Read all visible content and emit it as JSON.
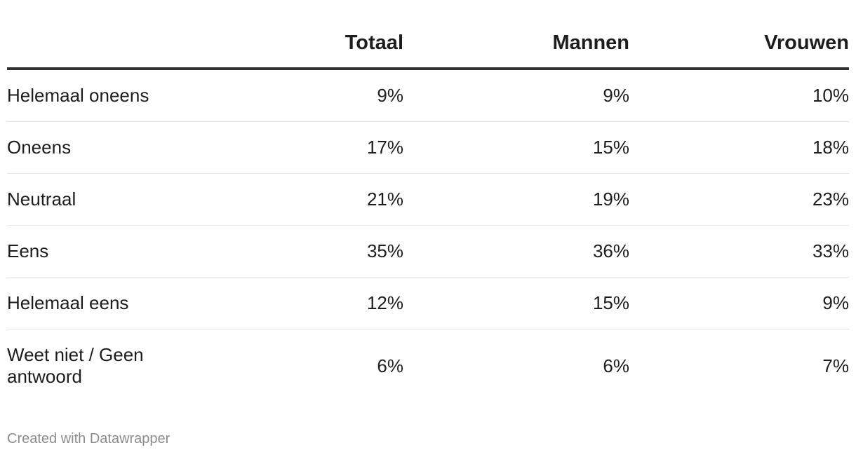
{
  "chart_data": {
    "type": "table",
    "columns": [
      "",
      "Totaal",
      "Mannen",
      "Vrouwen"
    ],
    "rows": [
      {
        "label": "Helemaal oneens",
        "values": [
          "9%",
          "9%",
          "10%"
        ]
      },
      {
        "label": "Oneens",
        "values": [
          "17%",
          "15%",
          "18%"
        ]
      },
      {
        "label": "Neutraal",
        "values": [
          "21%",
          "19%",
          "23%"
        ]
      },
      {
        "label": "Eens",
        "values": [
          "35%",
          "36%",
          "33%"
        ]
      },
      {
        "label": "Helemaal eens",
        "values": [
          "12%",
          "15%",
          "9%"
        ]
      },
      {
        "label": "Weet niet / Geen antwoord",
        "values": [
          "6%",
          "6%",
          "7%"
        ]
      }
    ]
  },
  "footer": {
    "credit": "Created with Datawrapper"
  }
}
